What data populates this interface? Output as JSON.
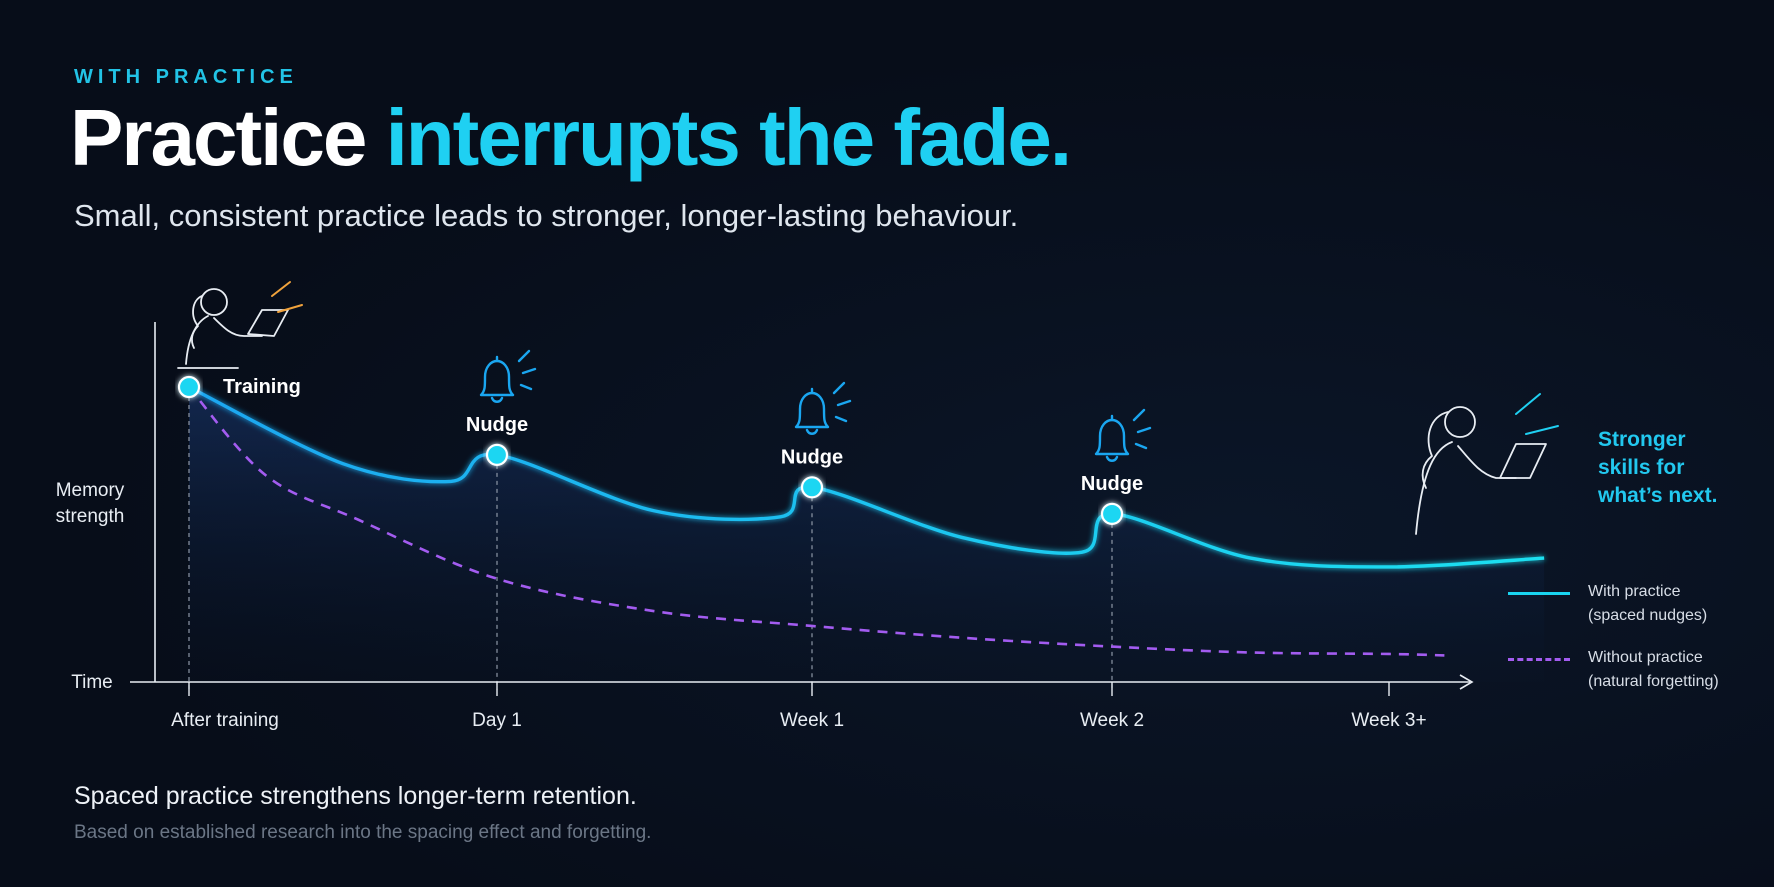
{
  "eyebrow": "WITH PRACTICE",
  "headline": {
    "lead": "Practice",
    "accent": "interrupts the fade."
  },
  "subtitle": "Small, consistent practice leads to stronger, longer-lasting behaviour.",
  "footer": {
    "main": "Spaced practice strengthens longer-term retention.",
    "note": "Based on established research into the spacing effect and forgetting."
  },
  "colors": {
    "accent": "#1fd0f2",
    "with_practice": "#19d4f0",
    "without_practice": "#a35cf0",
    "background": "#070d19"
  },
  "end_note": [
    "Stronger",
    "skills for",
    "what’s next."
  ],
  "legend": [
    {
      "line1": "With practice",
      "line2": "(spaced nudges)",
      "style": "solid"
    },
    {
      "line1": "Without practice",
      "line2": "(natural forgetting)",
      "style": "dashed"
    }
  ],
  "icons": {
    "training": "person-at-laptop-icon",
    "nudge": "bell-icon",
    "end": "person-at-laptop-icon"
  },
  "chart_data": {
    "type": "line",
    "ylabel": [
      "Memory",
      "strength"
    ],
    "xlabel": "Time",
    "categories": [
      "After training",
      "Day 1",
      "Week 1",
      "Week 2",
      "Week 3+"
    ],
    "event_labels": [
      "Training",
      "Nudge",
      "Nudge",
      "Nudge"
    ],
    "series": [
      {
        "name": "With practice",
        "style": "solid",
        "points": [
          [
            0,
            100
          ],
          [
            0.5,
            74
          ],
          [
            0.85,
            68
          ],
          [
            1,
            77
          ],
          [
            1.5,
            58
          ],
          [
            1.9,
            56
          ],
          [
            2,
            66
          ],
          [
            2.5,
            49
          ],
          [
            2.9,
            44
          ],
          [
            3,
            57
          ],
          [
            3.5,
            42
          ],
          [
            4,
            39
          ],
          [
            4.56,
            42
          ]
        ]
      },
      {
        "name": "Without practice",
        "style": "dashed",
        "points": [
          [
            0,
            100
          ],
          [
            0.25,
            70
          ],
          [
            0.55,
            55
          ],
          [
            1,
            35
          ],
          [
            1.5,
            24
          ],
          [
            2,
            19
          ],
          [
            2.5,
            15
          ],
          [
            3,
            12
          ],
          [
            3.5,
            10
          ],
          [
            4,
            9.5
          ],
          [
            4.2,
            9
          ]
        ]
      }
    ],
    "nudge_points": [
      [
        0,
        100
      ],
      [
        1,
        77
      ],
      [
        2,
        66
      ],
      [
        3,
        57
      ]
    ],
    "ylim": [
      0,
      100
    ],
    "grid": false,
    "legend_position": "right"
  }
}
